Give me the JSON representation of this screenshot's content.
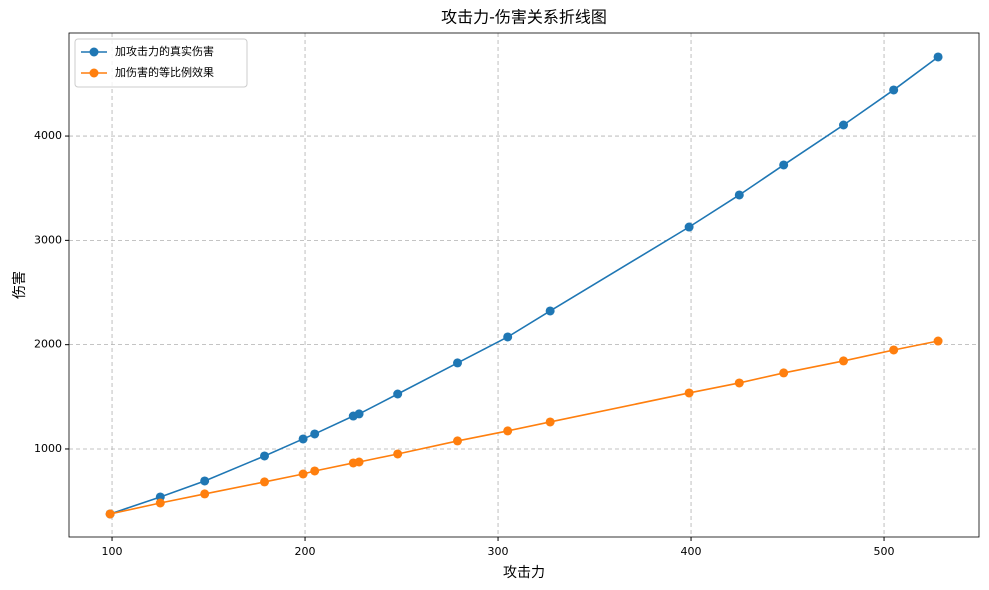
{
  "chart_data": {
    "type": "line",
    "title": "攻击力-伤害关系折线图",
    "x_label": "攻击力",
    "y_label": "伤害",
    "x": [
      99,
      125,
      148,
      179,
      199,
      205,
      225,
      228,
      248,
      279,
      305,
      327,
      399,
      425,
      448,
      479,
      505,
      528
    ],
    "series": [
      {
        "name": "加攻击力的真实伤害",
        "color": "#1f77b4",
        "values": [
          377,
          540,
          693,
          933,
          1096,
          1144,
          1316,
          1336,
          1527,
          1825,
          2074,
          2323,
          3128,
          3435,
          3723,
          4106,
          4442,
          4758
        ]
      },
      {
        "name": "加伤害的等比例效果",
        "color": "#ff7f0e",
        "values": [
          377,
          482,
          569,
          684,
          760,
          789,
          866,
          875,
          952,
          1077,
          1173,
          1259,
          1537,
          1633,
          1729,
          1844,
          1949,
          2035
        ]
      }
    ],
    "xlim": [
      77.7,
      549.2
    ],
    "ylim": [
      156,
      4988
    ],
    "xticks": [
      100,
      200,
      300,
      400,
      500
    ],
    "yticks": [
      1000,
      2000,
      3000,
      4000
    ],
    "grid": true,
    "legend": "upper-left"
  }
}
